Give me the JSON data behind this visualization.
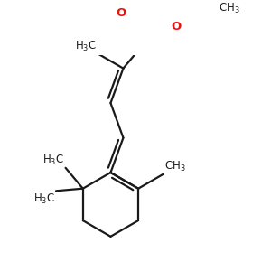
{
  "bg_color": "#ffffff",
  "bond_color": "#1a1a1a",
  "o_color": "#ee1111",
  "line_width": 1.6,
  "dbo": 0.018,
  "font_size": 8.5,
  "figsize": [
    3.0,
    3.0
  ],
  "dpi": 100
}
